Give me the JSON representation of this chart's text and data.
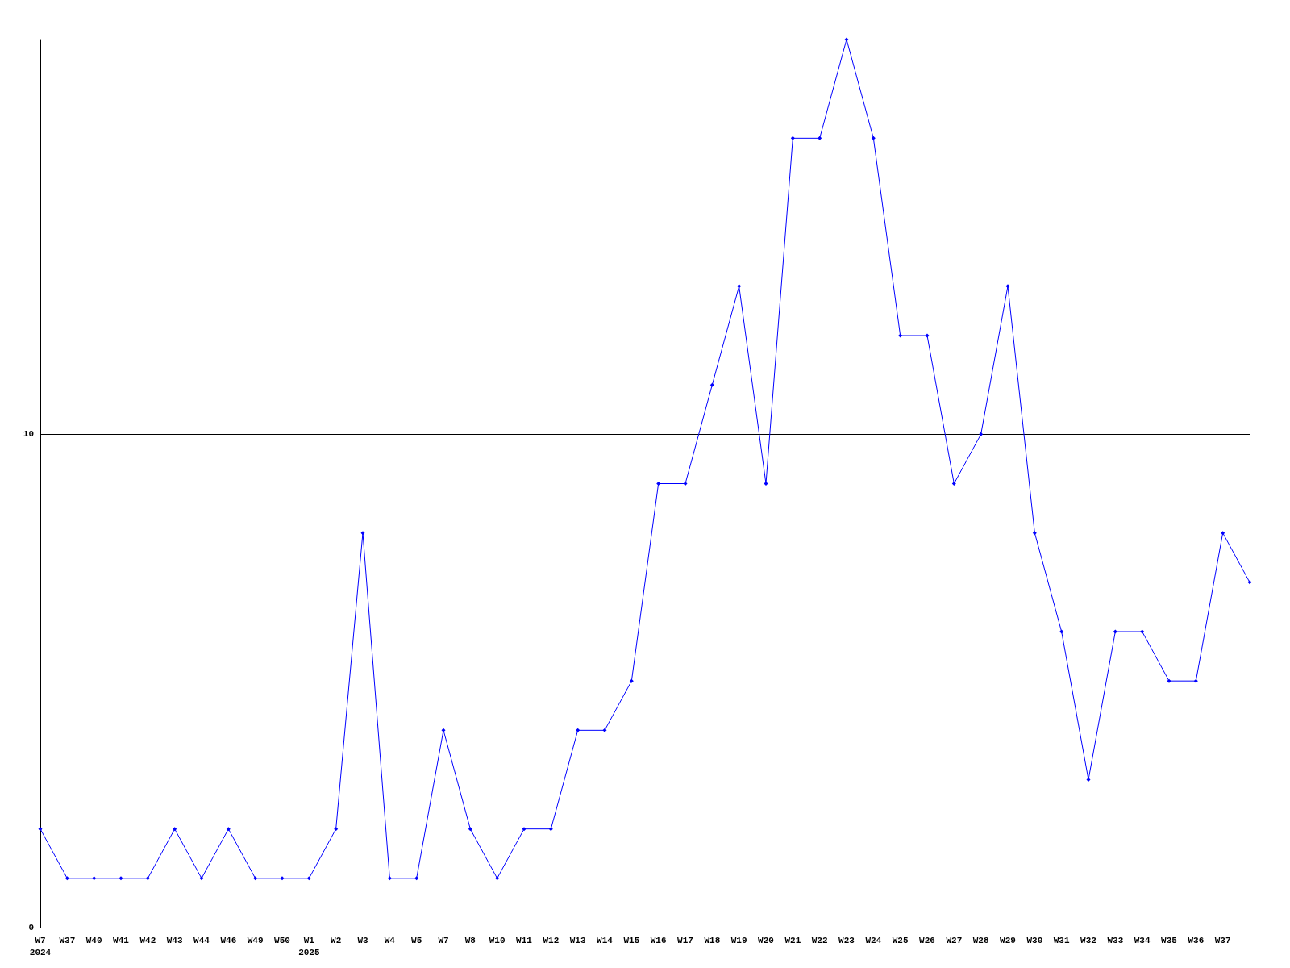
{
  "chart_data": {
    "type": "line",
    "categories": [
      "W7\n2024",
      "W37",
      "W40",
      "W41",
      "W42",
      "W43",
      "W44",
      "W46",
      "W49",
      "W50",
      "W1\n2025",
      "W2",
      "W3",
      "W4",
      "W5",
      "W7",
      "W8",
      "W10",
      "W11",
      "W12",
      "W13",
      "W14",
      "W15",
      "W16",
      "W17",
      "W18",
      "W19",
      "W20",
      "W21",
      "W22",
      "W23",
      "W24",
      "W25",
      "W26",
      "W27",
      "W28",
      "W29",
      "W30",
      "W31",
      "W32",
      "W33",
      "W34",
      "W35",
      "W36",
      "W37",
      null
    ],
    "series": [
      {
        "color": "#0000ff",
        "values": [
          2,
          1,
          1,
          1,
          1,
          2,
          1,
          2,
          1,
          1,
          1,
          2,
          8,
          1,
          1,
          4,
          2,
          1,
          2,
          2,
          4,
          4,
          5,
          9,
          9,
          11,
          13,
          9,
          16,
          16,
          18,
          16,
          12,
          12,
          9,
          10,
          13,
          8,
          6,
          3,
          6,
          6,
          5,
          5,
          8,
          7
        ]
      }
    ],
    "ylim": [
      0,
      18
    ],
    "yticks": [
      0,
      10
    ],
    "grid": "y",
    "marker": "diamond",
    "line_style": "solid"
  }
}
